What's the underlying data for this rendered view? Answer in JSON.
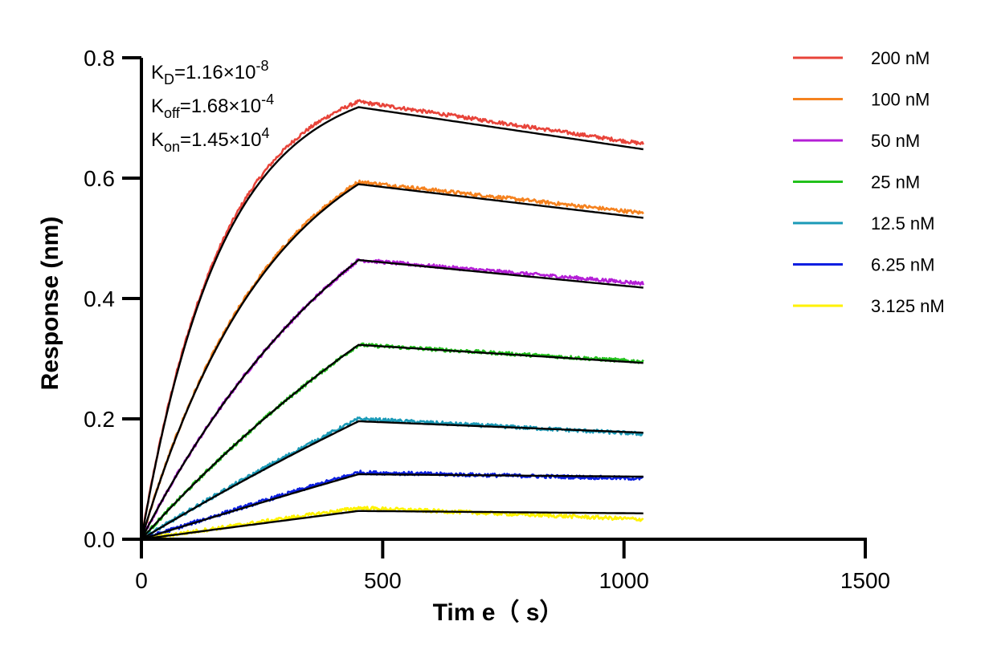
{
  "chart_data": {
    "type": "line",
    "xlabel": "Tim e（ s）",
    "ylabel": "Response (nm)",
    "xlim": [
      0,
      1500
    ],
    "ylim": [
      0,
      0.8
    ],
    "x_ticks": [
      "0",
      "500",
      "1000",
      "1500"
    ],
    "y_ticks": [
      "0.0",
      "0.2",
      "0.4",
      "0.6",
      "0.8"
    ],
    "grid": false,
    "legend_position": "top-right",
    "association_end_s": 450,
    "run_end_s": 1040,
    "kinetics": [
      {
        "base": "K",
        "sub": "D",
        "value": "=1.16×10",
        "exp": "-8"
      },
      {
        "base": "K",
        "sub": "off",
        "value": "=1.68×10",
        "exp": "-4"
      },
      {
        "base": "K",
        "sub": "on",
        "value": "=1.45×10",
        "exp": "4"
      }
    ],
    "series": [
      {
        "name": "200 nM",
        "color": "#e8443a",
        "peak": 0.727,
        "peak_fit": 0.718,
        "end": 0.657,
        "end_fit": 0.648,
        "curv": 0.9
      },
      {
        "name": "100 nM",
        "color": "#f5821f",
        "peak": 0.594,
        "peak_fit": 0.59,
        "end": 0.542,
        "end_fit": 0.534,
        "curv": 0.55
      },
      {
        "name": "50 nM",
        "color": "#b41fd6",
        "peak": 0.464,
        "peak_fit": 0.464,
        "end": 0.425,
        "end_fit": 0.418,
        "curv": 0.3
      },
      {
        "name": "25 nM",
        "color": "#22c11c",
        "peak": 0.323,
        "peak_fit": 0.323,
        "end": 0.295,
        "end_fit": 0.293,
        "curv": 0.15
      },
      {
        "name": "12.5 nM",
        "color": "#1b9ab7",
        "peak": 0.2,
        "peak_fit": 0.196,
        "end": 0.175,
        "end_fit": 0.177,
        "curv": 0.07
      },
      {
        "name": "6.25 nM",
        "color": "#0b1ee0",
        "peak": 0.111,
        "peak_fit": 0.108,
        "end": 0.101,
        "end_fit": 0.104,
        "curv": 0.03
      },
      {
        "name": "3.125 nM",
        "color": "#fff200",
        "peak": 0.052,
        "peak_fit": 0.047,
        "end": 0.033,
        "end_fit": 0.043,
        "curv": 0.01
      }
    ],
    "fit_color": "#000000"
  }
}
